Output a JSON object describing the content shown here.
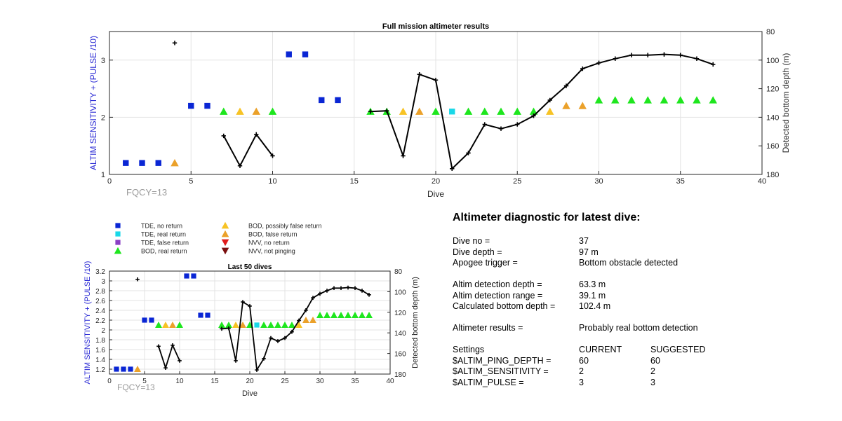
{
  "chart_data": [
    {
      "type": "scatter",
      "title": "Full mission altimeter results",
      "xlabel": "Dive",
      "ylabel": "ALTIM SENSITIVITY + (PULSE /10)",
      "y2label": "Detected bottom depth (m)",
      "xlim": [
        0,
        40
      ],
      "ylim": [
        1,
        3.5
      ],
      "y2lim": [
        180,
        80
      ],
      "y2_reversed": true,
      "grid": true,
      "xticks": [
        "0",
        "5",
        "10",
        "15",
        "20",
        "25",
        "30",
        "35",
        "40"
      ],
      "yticks": [
        "1",
        "2",
        "3"
      ],
      "y2ticks": [
        "80",
        "100",
        "120",
        "140",
        "160",
        "180"
      ],
      "annotation": "FQCY=13"
    },
    {
      "type": "scatter",
      "title": "Last 50 dives",
      "xlabel": "Dive",
      "ylabel": "ALTIM SENSITIVITY + (PULSE /10)",
      "y2label": "Detected bottom depth (m)",
      "xlim": [
        0,
        40
      ],
      "ylim": [
        1.1,
        3.2
      ],
      "y2lim": [
        180,
        80
      ],
      "y2_reversed": true,
      "grid": true,
      "xticks": [
        "0",
        "5",
        "10",
        "15",
        "20",
        "25",
        "30",
        "35",
        "40"
      ],
      "yticks": [
        "1.2",
        "1.4",
        "1.6",
        "1.8",
        "2",
        "2.2",
        "2.4",
        "2.6",
        "2.8",
        "3",
        "3.2"
      ],
      "y2ticks": [
        "80",
        "100",
        "120",
        "140",
        "160",
        "180"
      ],
      "annotation": "FQCY=13"
    }
  ],
  "series": {
    "tde_no_return": {
      "name": "TDE, no return",
      "marker": "square",
      "color": "#0a26d4",
      "points": [
        [
          1,
          1.2
        ],
        [
          2,
          1.2
        ],
        [
          3,
          1.2
        ],
        [
          5,
          2.2
        ],
        [
          6,
          2.2
        ],
        [
          11,
          3.1
        ],
        [
          12,
          3.1
        ],
        [
          13,
          2.3
        ],
        [
          14,
          2.3
        ]
      ]
    },
    "tde_real_return": {
      "name": "TDE, real return",
      "marker": "square",
      "color": "#19d8e8",
      "points": [
        [
          21,
          2.1
        ]
      ]
    },
    "tde_false_return": {
      "name": "TDE, false return",
      "marker": "square",
      "color": "#8a3fc4",
      "points": []
    },
    "bod_real_return": {
      "name": "BOD, real return",
      "marker": "triangle-up",
      "color": "#1ee61e",
      "points": [
        [
          7,
          2.1
        ],
        [
          10,
          2.1
        ],
        [
          16,
          2.1
        ],
        [
          17,
          2.1
        ],
        [
          20,
          2.1
        ],
        [
          22,
          2.1
        ],
        [
          23,
          2.1
        ],
        [
          24,
          2.1
        ],
        [
          25,
          2.1
        ],
        [
          26,
          2.1
        ],
        [
          30,
          2.3
        ],
        [
          31,
          2.3
        ],
        [
          32,
          2.3
        ],
        [
          33,
          2.3
        ],
        [
          34,
          2.3
        ],
        [
          35,
          2.3
        ],
        [
          36,
          2.3
        ],
        [
          37,
          2.3
        ]
      ]
    },
    "bod_possibly_false": {
      "name": "BOD, possibly false return",
      "marker": "triangle-up",
      "color": "#f7c325",
      "points": [
        [
          8,
          2.1
        ],
        [
          18,
          2.1
        ],
        [
          27,
          2.1
        ]
      ]
    },
    "bod_false_return": {
      "name": "BOD, false return",
      "marker": "triangle-up",
      "color": "#eba12a",
      "points": [
        [
          4,
          1.2
        ],
        [
          9,
          2.1
        ],
        [
          19,
          2.1
        ],
        [
          28,
          2.2
        ],
        [
          29,
          2.2
        ]
      ]
    },
    "nvv_no_return": {
      "name": "NVV, no return",
      "marker": "triangle-down",
      "color": "#e01b1b",
      "points": []
    },
    "nvv_not_pinging": {
      "name": "NVV, not pinging",
      "marker": "triangle-down",
      "color": "#7a0f0f",
      "points": []
    },
    "bottom_depth": {
      "color": "#000000",
      "marker": "plus",
      "isolated": [
        [
          4,
          88
        ]
      ],
      "segments": [
        [
          [
            7,
            153
          ],
          [
            8,
            174
          ],
          [
            9,
            152
          ],
          [
            10,
            167
          ]
        ],
        [
          [
            16,
            136
          ],
          [
            17,
            135.5
          ],
          [
            18,
            167
          ],
          [
            19,
            110
          ],
          [
            20,
            114
          ],
          [
            21,
            176
          ],
          [
            22,
            165
          ],
          [
            23,
            145
          ],
          [
            24,
            148
          ],
          [
            25,
            145
          ],
          [
            26,
            139
          ],
          [
            27,
            128
          ],
          [
            28,
            118
          ],
          [
            29,
            106
          ],
          [
            30,
            102
          ],
          [
            31,
            99
          ],
          [
            32,
            96.5
          ],
          [
            33,
            96.5
          ],
          [
            34,
            96
          ],
          [
            35,
            96.5
          ],
          [
            36,
            99
          ],
          [
            37,
            103
          ]
        ]
      ]
    }
  },
  "legend_order": [
    "tde_no_return",
    "bod_possibly_false",
    "tde_real_return",
    "bod_false_return",
    "tde_false_return",
    "nvv_no_return",
    "bod_real_return",
    "nvv_not_pinging"
  ],
  "diagnostic": {
    "title": "Altimeter diagnostic for latest dive:",
    "dive_no_label": "Dive no =",
    "dive_no": "37",
    "dive_depth_label": "Dive depth =",
    "dive_depth": "97 m",
    "apogee_label": "Apogee trigger =",
    "apogee": "Bottom obstacle detected",
    "altim_depth_label": "Altim detection depth =",
    "altim_depth": "63.3 m",
    "altim_range_label": "Altim detection range =",
    "altim_range": "39.1 m",
    "calc_depth_label": "Calculated bottom depth =",
    "calc_depth": "102.4 m",
    "results_label": "Altimeter results =",
    "results": "Probably real bottom detection",
    "settings_label": "Settings",
    "current_label": "CURRENT",
    "suggested_label": "SUGGESTED",
    "settings": [
      {
        "name": "$ALTIM_PING_DEPTH =",
        "current": "60",
        "suggested": "60"
      },
      {
        "name": "$ALTIM_SENSITIVITY =",
        "current": "2",
        "suggested": "2"
      },
      {
        "name": "$ALTIM_PULSE =",
        "current": "3",
        "suggested": "3"
      }
    ]
  }
}
